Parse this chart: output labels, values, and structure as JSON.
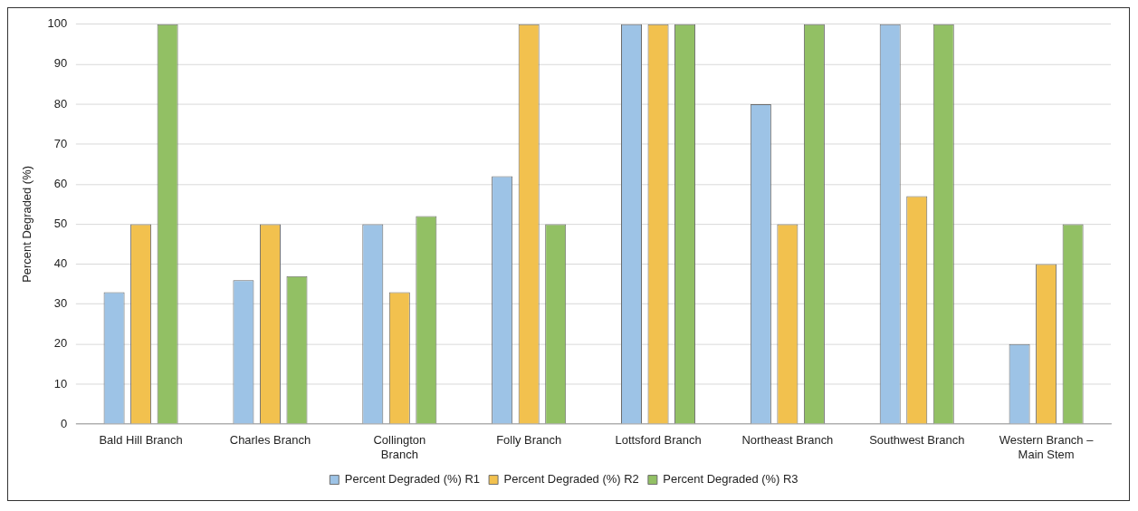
{
  "chart_data": {
    "type": "bar",
    "ylabel": "Percent Degraded (%)",
    "categories": [
      "Bald Hill Branch",
      "Charles Branch",
      "Collington Branch",
      "Folly Branch",
      "Lottsford Branch",
      "Northeast Branch",
      "Southwest Branch",
      "Western Branch – Main Stem"
    ],
    "series": [
      {
        "name": "Percent Degraded (%) R1",
        "color": "#9dc3e6",
        "values": [
          33,
          36,
          50,
          62,
          100,
          80,
          100,
          20
        ]
      },
      {
        "name": "Percent Degraded (%) R2",
        "color": "#f2c14e",
        "values": [
          50,
          50,
          33,
          100,
          100,
          50,
          57,
          40
        ]
      },
      {
        "name": "Percent Degraded (%) R3",
        "color": "#92c064",
        "values": [
          100,
          37,
          52,
          50,
          100,
          100,
          100,
          50
        ]
      }
    ],
    "ylim": [
      0,
      100
    ],
    "yticks": [
      0,
      10,
      20,
      30,
      40,
      50,
      60,
      70,
      80,
      90,
      100
    ],
    "grid": "y",
    "legend": "bottom"
  }
}
